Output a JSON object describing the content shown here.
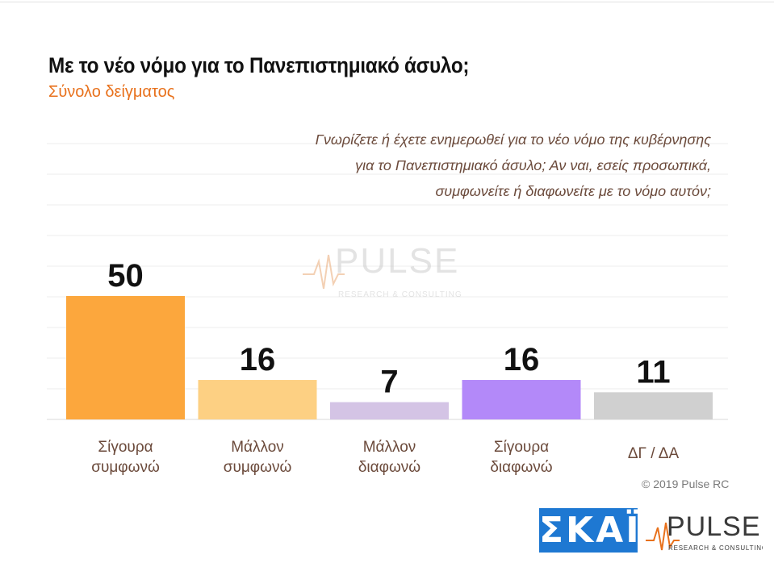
{
  "header": {
    "title": "Με το νέο νόμο για το Πανεπιστημιακό άσυλο;",
    "subtitle": "Σύνολο δείγματος"
  },
  "question": {
    "line1": "Γνωρίζετε ή έχετε ενημερωθεί για το νέο νόμο της κυβέρνησης",
    "line2": "για το Πανεπιστημιακό άσυλο; Αν ναι, εσείς προσωπικά,",
    "line3": "συμφωνείτε ή διαφωνείτε με το νόμο αυτόν;"
  },
  "footer": {
    "copyright": "© 2019 Pulse RC",
    "skai_logo_text": "ΣΚΑΪ",
    "pulse_logo_text": "PULSE",
    "pulse_logo_tagline": "RESEARCH & CONSULTING"
  },
  "watermark": {
    "text": "PULSE",
    "tagline": "RESEARCH & CONSULTING"
  },
  "chart_data": {
    "type": "bar",
    "categories": [
      [
        "Σίγουρα",
        "συμφωνώ"
      ],
      [
        "Μάλλον",
        "συμφωνώ"
      ],
      [
        "Μάλλον",
        "διαφωνώ"
      ],
      [
        "Σίγουρα",
        "διαφωνώ"
      ],
      [
        "ΔΓ / ΔΑ"
      ]
    ],
    "values": [
      50,
      16,
      7,
      16,
      11
    ],
    "colors": [
      "#fca73d",
      "#fdd083",
      "#d4c4e5",
      "#b389f9",
      "#d0d0d0"
    ],
    "ylim": [
      0,
      100
    ],
    "grid": true
  }
}
